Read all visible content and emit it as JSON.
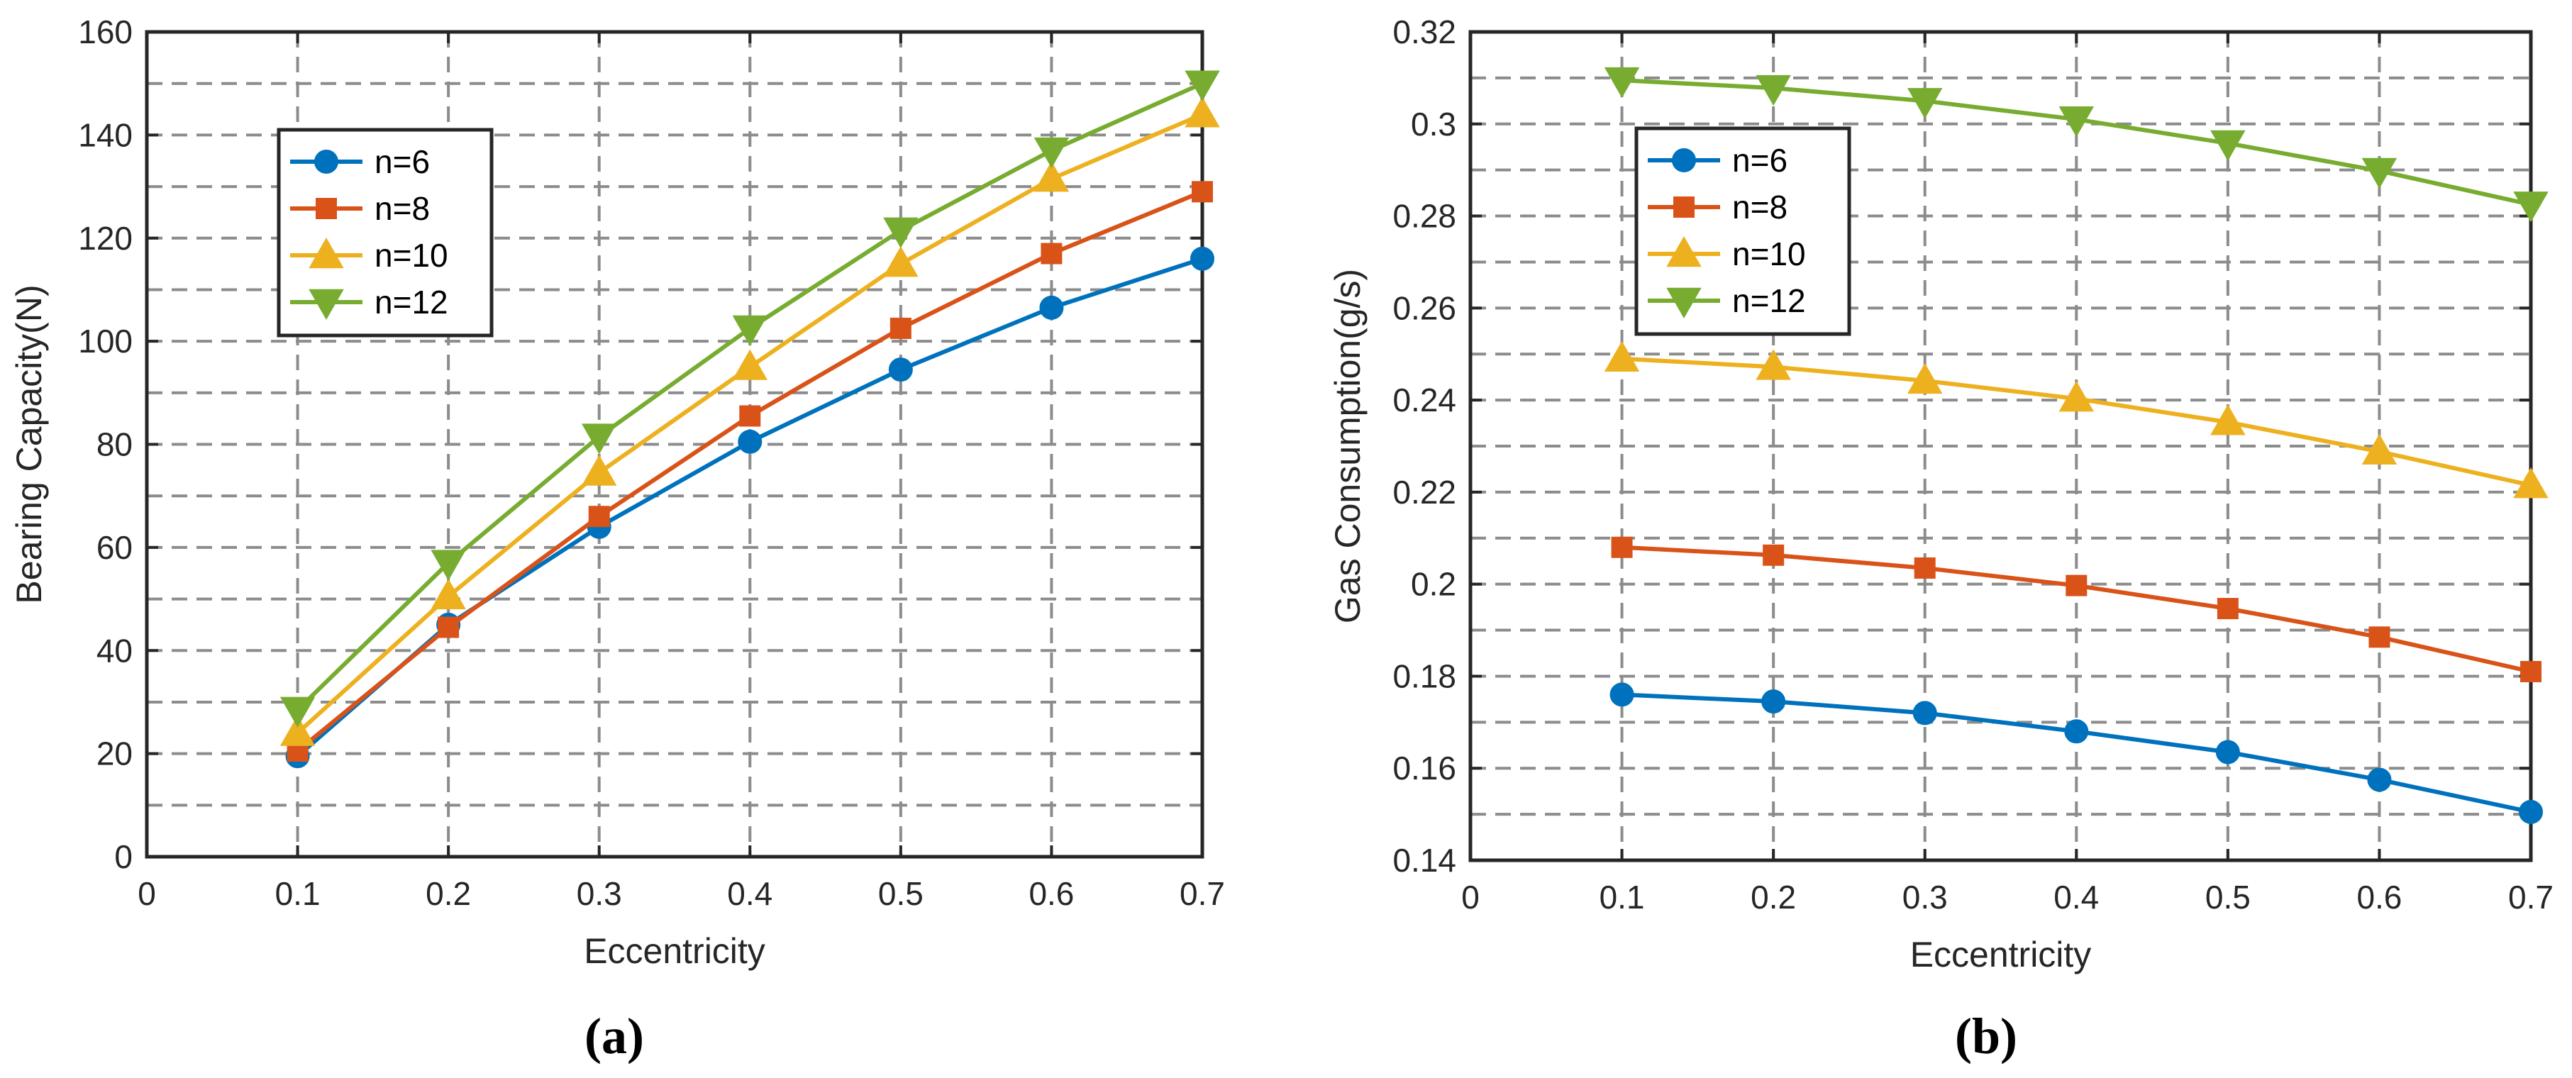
{
  "chart_data": [
    {
      "type": "line",
      "panel": "(a)",
      "title": "",
      "xlabel": "Eccentricity",
      "ylabel": "Bearing Capacity(N)",
      "xlim": [
        0,
        0.7
      ],
      "ylim": [
        0,
        160
      ],
      "xticks": [
        0,
        0.1,
        0.2,
        0.3,
        0.4,
        0.5,
        0.6,
        0.7
      ],
      "xtick_labels": [
        "0",
        "0.1",
        "0.2",
        "0.3",
        "0.4",
        "0.5",
        "0.6",
        "0.7"
      ],
      "yticks": [
        0,
        20,
        40,
        60,
        80,
        100,
        120,
        140,
        160
      ],
      "ytick_labels": [
        "0",
        "20",
        "40",
        "60",
        "80",
        "100",
        "120",
        "140",
        "160"
      ],
      "grid_minor_y": 10,
      "grid": true,
      "legend_position": "upper-left",
      "x": [
        0.1,
        0.2,
        0.3,
        0.4,
        0.5,
        0.6,
        0.7
      ],
      "series": [
        {
          "name": "n=6",
          "color": "#0072BD",
          "marker": "circle",
          "values": [
            19.5,
            45,
            64,
            80.5,
            94.5,
            106.5,
            116
          ]
        },
        {
          "name": "n=8",
          "color": "#D95319",
          "marker": "square",
          "values": [
            20.5,
            44.5,
            66,
            85.5,
            102.5,
            117,
            129
          ]
        },
        {
          "name": "n=10",
          "color": "#EDB120",
          "marker": "triangle-up",
          "values": [
            24,
            50.5,
            74.5,
            95,
            115,
            131.5,
            144
          ]
        },
        {
          "name": "n=12",
          "color": "#77AC30",
          "marker": "triangle-down",
          "values": [
            28.5,
            57,
            81.5,
            102.5,
            121.5,
            137,
            150
          ]
        }
      ]
    },
    {
      "type": "line",
      "panel": "(b)",
      "title": "",
      "xlabel": "Eccentricity",
      "ylabel": "Gas Consumption(g/s)",
      "xlim": [
        0,
        0.7
      ],
      "ylim": [
        0.14,
        0.32
      ],
      "xticks": [
        0,
        0.1,
        0.2,
        0.3,
        0.4,
        0.5,
        0.6,
        0.7
      ],
      "xtick_labels": [
        "0",
        "0.1",
        "0.2",
        "0.3",
        "0.4",
        "0.5",
        "0.6",
        "0.7"
      ],
      "yticks": [
        0.14,
        0.16,
        0.18,
        0.2,
        0.22,
        0.24,
        0.26,
        0.28,
        0.3,
        0.32
      ],
      "ytick_labels": [
        "0.14",
        "0.16",
        "0.18",
        "0.2",
        "0.22",
        "0.24",
        "0.26",
        "0.28",
        "0.3",
        "0.32"
      ],
      "grid_minor_y": 0.01,
      "grid": true,
      "legend_position": "upper-left",
      "x": [
        0.1,
        0.2,
        0.3,
        0.4,
        0.5,
        0.6,
        0.7
      ],
      "series": [
        {
          "name": "n=6",
          "color": "#0072BD",
          "marker": "circle",
          "values": [
            0.176,
            0.1745,
            0.172,
            0.168,
            0.1635,
            0.1575,
            0.1505
          ]
        },
        {
          "name": "n=8",
          "color": "#D95319",
          "marker": "square",
          "values": [
            0.208,
            0.2063,
            0.2035,
            0.1997,
            0.1947,
            0.1885,
            0.181
          ]
        },
        {
          "name": "n=10",
          "color": "#EDB120",
          "marker": "triangle-up",
          "values": [
            0.249,
            0.2472,
            0.2442,
            0.2403,
            0.2352,
            0.2288,
            0.2215
          ]
        },
        {
          "name": "n=12",
          "color": "#77AC30",
          "marker": "triangle-down",
          "values": [
            0.3095,
            0.3078,
            0.305,
            0.301,
            0.2958,
            0.2898,
            0.2825
          ]
        }
      ]
    }
  ]
}
